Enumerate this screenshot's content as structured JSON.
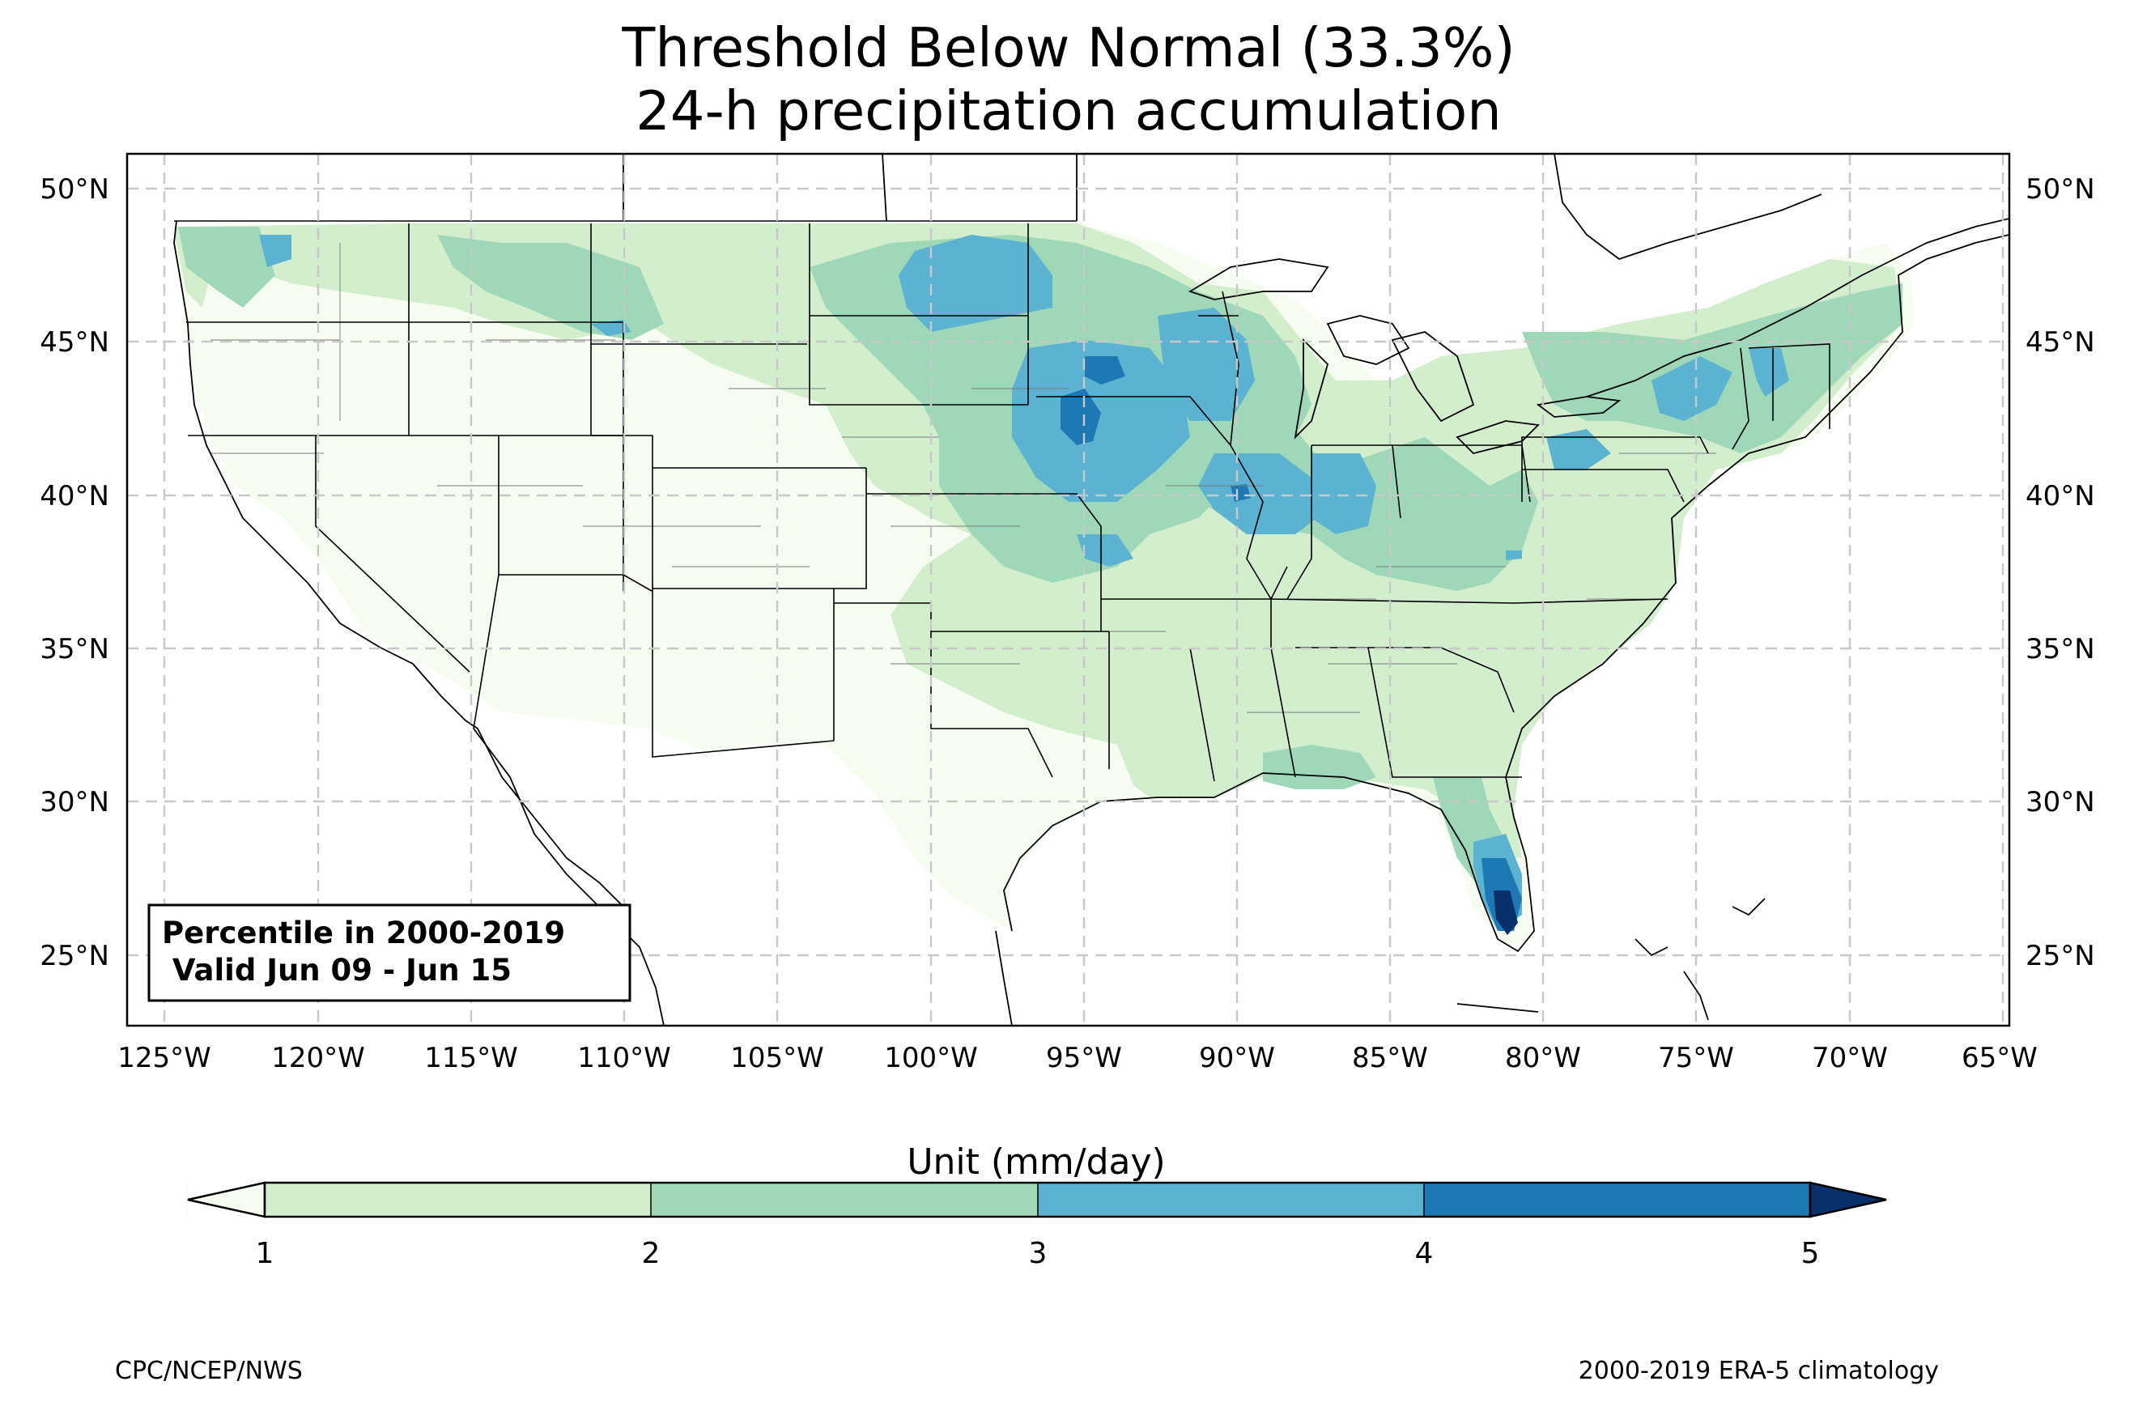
{
  "title": {
    "line1": "Threshold Below Normal (33.3%)",
    "line2": "24-h precipitation accumulation"
  },
  "map": {
    "lon_ticks": [
      "125°W",
      "120°W",
      "115°W",
      "110°W",
      "105°W",
      "100°W",
      "95°W",
      "90°W",
      "85°W",
      "80°W",
      "75°W",
      "70°W",
      "65°W"
    ],
    "lat_ticks": [
      "50°N",
      "45°N",
      "40°N",
      "35°N",
      "30°N",
      "25°N"
    ],
    "extent_lon": [
      -126.3,
      -65
    ],
    "extent_lat": [
      22.8,
      51.2
    ],
    "gridlines": true
  },
  "infobox": {
    "line1": "Percentile in 2000-2019",
    "line2": " Valid Jun 09 - Jun 15"
  },
  "colorbar": {
    "label": "Unit (mm/day)",
    "ticks": [
      "1",
      "2",
      "3",
      "4",
      "5"
    ],
    "levels": [
      1,
      2,
      3,
      4,
      5
    ],
    "colors": {
      "under": "#f7fcf0",
      "c1_2": "#d3eecd",
      "c2_3": "#9fd8b8",
      "c3_4": "#5bb3d1",
      "c4_5": "#1e78b4",
      "over": "#08306b"
    }
  },
  "footer": {
    "left": "CPC/NCEP/NWS",
    "right": "2000-2019 ERA-5 climatology"
  }
}
